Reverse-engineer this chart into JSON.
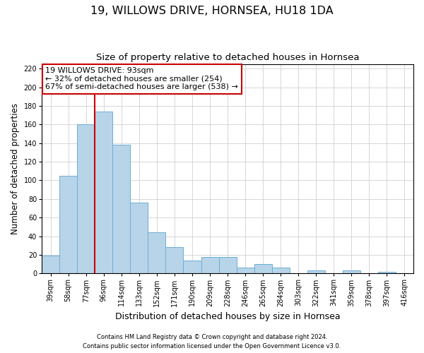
{
  "title": "19, WILLOWS DRIVE, HORNSEA, HU18 1DA",
  "subtitle": "Size of property relative to detached houses in Hornsea",
  "xlabel": "Distribution of detached houses by size in Hornsea",
  "ylabel": "Number of detached properties",
  "categories": [
    "39sqm",
    "58sqm",
    "77sqm",
    "96sqm",
    "114sqm",
    "133sqm",
    "152sqm",
    "171sqm",
    "190sqm",
    "209sqm",
    "228sqm",
    "246sqm",
    "265sqm",
    "284sqm",
    "303sqm",
    "322sqm",
    "341sqm",
    "359sqm",
    "378sqm",
    "397sqm",
    "416sqm"
  ],
  "values": [
    19,
    105,
    160,
    174,
    138,
    76,
    44,
    28,
    14,
    18,
    18,
    6,
    10,
    6,
    0,
    3,
    0,
    3,
    0,
    2,
    0
  ],
  "bar_color": "#b8d4e8",
  "bar_edge_color": "#6baed6",
  "vline_x_index": 3,
  "vline_color": "#cc0000",
  "annotation_line1": "19 WILLOWS DRIVE: 93sqm",
  "annotation_line2": "← 32% of detached houses are smaller (254)",
  "annotation_line3": "67% of semi-detached houses are larger (538) →",
  "annotation_box_color": "#ffffff",
  "annotation_box_edge": "#cc0000",
  "ylim": [
    0,
    225
  ],
  "yticks": [
    0,
    20,
    40,
    60,
    80,
    100,
    120,
    140,
    160,
    180,
    200,
    220
  ],
  "footer1": "Contains HM Land Registry data © Crown copyright and database right 2024.",
  "footer2": "Contains public sector information licensed under the Open Government Licence v3.0.",
  "bg_color": "#ffffff",
  "grid_color": "#d0d0d0",
  "title_fontsize": 11.5,
  "subtitle_fontsize": 9.5,
  "tick_fontsize": 7,
  "ylabel_fontsize": 8.5,
  "xlabel_fontsize": 9,
  "footer_fontsize": 6,
  "annotation_fontsize": 8
}
